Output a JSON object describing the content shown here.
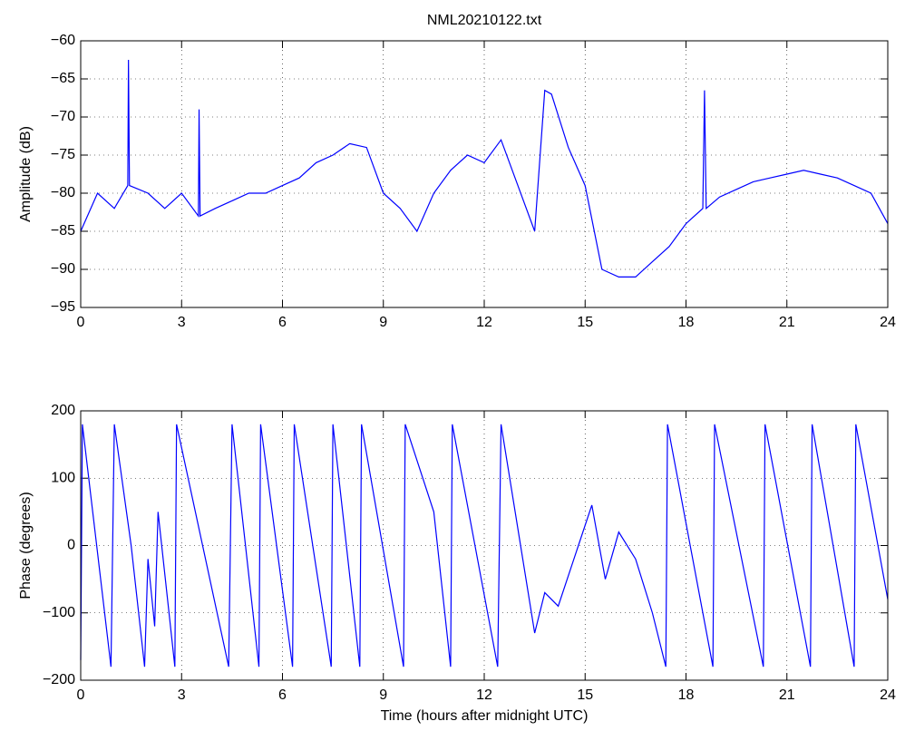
{
  "chart_data": [
    {
      "type": "line",
      "title": "NML20210122.txt",
      "y_label": "Amplitude (dB)",
      "x": [
        0,
        0.5,
        1,
        1.4,
        1.42,
        1.45,
        2,
        2.5,
        3,
        3.5,
        3.52,
        3.55,
        4,
        4.5,
        5,
        5.5,
        6,
        6.5,
        7,
        7.5,
        8,
        8.5,
        9,
        9.5,
        10,
        10.5,
        11,
        11.5,
        12,
        12.5,
        13,
        13.5,
        13.8,
        14,
        14.5,
        15,
        15.5,
        16,
        16.5,
        17,
        17.5,
        18,
        18.5,
        18.55,
        18.6,
        19,
        19.5,
        20,
        20.5,
        21,
        21.5,
        22,
        22.5,
        23,
        23.5,
        24
      ],
      "series": [
        {
          "color": "#0000ff",
          "values": [
            -85,
            -80,
            -82,
            -79,
            -62.5,
            -79,
            -80,
            -82,
            -80,
            -83,
            -69,
            -83,
            -82,
            -81,
            -80,
            -80,
            -79,
            -78,
            -76,
            -75,
            -73.5,
            -74,
            -80,
            -82,
            -85,
            -80,
            -77,
            -75,
            -76,
            -73,
            -79,
            -85,
            -66.5,
            -67,
            -74,
            -79,
            -90,
            -91,
            -91,
            -89,
            -87,
            -84,
            -82,
            -66.5,
            -82,
            -80.5,
            -79.5,
            -78.5,
            -78,
            -77.5,
            -77,
            -77.5,
            -78,
            -79,
            -80,
            -84
          ]
        }
      ],
      "xlim": [
        0,
        24
      ],
      "xticks": [
        0,
        3,
        6,
        9,
        12,
        15,
        18,
        21,
        24
      ],
      "ylim": [
        -95,
        -60
      ],
      "yticks": [
        {
          "value": -60,
          "label": "−60"
        },
        {
          "value": -65,
          "label": "−65"
        },
        {
          "value": -70,
          "label": "−70"
        },
        {
          "value": -75,
          "label": "−75"
        },
        {
          "value": -80,
          "label": "−80"
        },
        {
          "value": -85,
          "label": "−85"
        },
        {
          "value": -90,
          "label": "−90"
        },
        {
          "value": -95,
          "label": "−95"
        }
      ],
      "grid": true
    },
    {
      "type": "line",
      "x_label": "Time (hours after midnight UTC)",
      "y_label": "Phase (degrees)",
      "x": [
        0,
        0.05,
        0.9,
        1.0,
        1.5,
        1.9,
        2.0,
        2.2,
        2.3,
        2.8,
        2.85,
        4.4,
        4.5,
        5.3,
        5.35,
        6.3,
        6.35,
        7.45,
        7.5,
        8.3,
        8.35,
        9.6,
        9.65,
        10.5,
        11.0,
        11.05,
        12.4,
        12.5,
        13.5,
        13.8,
        14.2,
        14.8,
        15.2,
        15.6,
        16.0,
        16.5,
        17.0,
        17.4,
        17.45,
        18.8,
        18.85,
        20.3,
        20.35,
        21.7,
        21.75,
        23.0,
        23.05,
        24
      ],
      "series": [
        {
          "color": "#0000ff",
          "values": [
            -170,
            180,
            -180,
            180,
            0,
            -180,
            -20,
            -120,
            50,
            -180,
            180,
            -180,
            180,
            -180,
            180,
            -180,
            180,
            -180,
            180,
            -180,
            180,
            -180,
            180,
            50,
            -180,
            180,
            -180,
            180,
            -130,
            -70,
            -90,
            0,
            60,
            -50,
            20,
            -20,
            -100,
            -180,
            180,
            -180,
            180,
            -180,
            180,
            -180,
            180,
            -180,
            180,
            -80
          ]
        }
      ],
      "xlim": [
        0,
        24
      ],
      "xticks": [
        0,
        3,
        6,
        9,
        12,
        15,
        18,
        21,
        24
      ],
      "ylim": [
        -200,
        200
      ],
      "yticks": [
        200,
        100,
        0,
        {
          "value": -100,
          "label": "−100"
        },
        {
          "value": -200,
          "label": "−200"
        }
      ],
      "grid": true
    }
  ]
}
